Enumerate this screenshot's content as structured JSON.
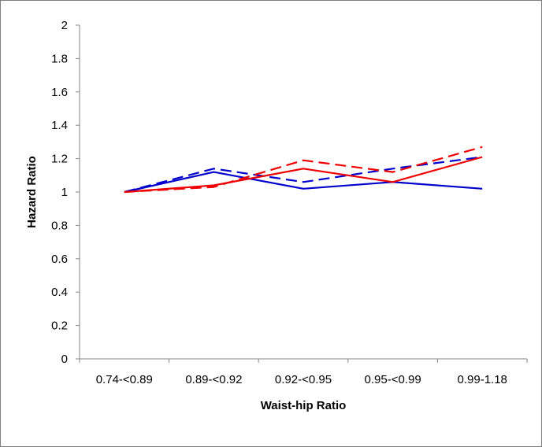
{
  "chart_data": {
    "type": "line",
    "title": "",
    "xlabel": "Waist-hip Ratio",
    "ylabel": "Hazard Ratio",
    "categories": [
      "0.74-<0.89",
      "0.89-<0.92",
      "0.92-<0.95",
      "0.95-<0.99",
      "0.99-1.18"
    ],
    "ylim": [
      0,
      2
    ],
    "yticks": [
      "0",
      "0.2",
      "0.4",
      "0.6",
      "0.8",
      "1",
      "1.2",
      "1.4",
      "1.6",
      "1.8",
      "2"
    ],
    "grid": false,
    "legend": "none",
    "series": [
      {
        "color": "#0000cc",
        "dash": "solid",
        "values": [
          1.0,
          1.12,
          1.02,
          1.06,
          1.02
        ]
      },
      {
        "color": "#0000cc",
        "dash": "dashed",
        "values": [
          1.0,
          1.14,
          1.06,
          1.14,
          1.21
        ]
      },
      {
        "color": "#ee0000",
        "dash": "solid",
        "values": [
          1.0,
          1.04,
          1.14,
          1.06,
          1.21
        ]
      },
      {
        "color": "#ee0000",
        "dash": "dashed",
        "values": [
          1.0,
          1.03,
          1.19,
          1.12,
          1.27
        ]
      }
    ]
  }
}
